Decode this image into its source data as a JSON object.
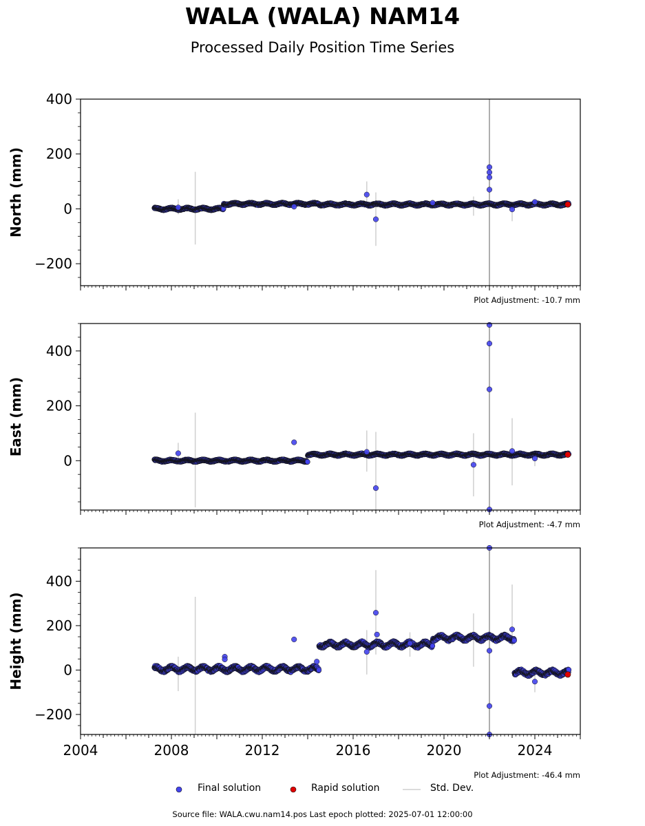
{
  "title": "WALA (WALA) NAM14",
  "subtitle": "Processed Daily Position Time Series",
  "footer": "Source file: WALA.cwu.nam14.pos  Last epoch plotted: 2025-07-01 12:00:00",
  "legend": {
    "final": "Final solution",
    "rapid": "Rapid solution",
    "std": "Std. Dev."
  },
  "colors": {
    "final": "#4444ee",
    "rapid": "#e00000",
    "std": "#cfcfcf",
    "edge": "#111111"
  },
  "chart_data": [
    {
      "type": "scatter",
      "ylabel": "North (mm)",
      "note": "Plot Adjustment: -10.7 mm",
      "xlim": [
        2004,
        2026
      ],
      "ylim": [
        -280,
        400
      ],
      "yticks": [
        -200,
        0,
        200,
        400
      ],
      "xticks": [],
      "segments": [
        [
          2007.25,
          2010.3,
          0
        ],
        [
          2010.3,
          2014.5,
          18
        ],
        [
          2014.5,
          2025.5,
          16
        ]
      ],
      "outliers": [
        [
          2008.3,
          5
        ],
        [
          2013.4,
          8
        ],
        [
          2016.6,
          52
        ],
        [
          2017.0,
          -38
        ],
        [
          2019.5,
          22
        ],
        [
          2022.0,
          152
        ],
        [
          2022.0,
          133
        ],
        [
          2022.0,
          115
        ],
        [
          2022.0,
          70
        ],
        [
          2023.0,
          -2
        ],
        [
          2024.0,
          25
        ]
      ],
      "error_bars": [
        [
          2008.3,
          -20,
          35
        ],
        [
          2009.05,
          -130,
          135
        ],
        [
          2016.6,
          5,
          100
        ],
        [
          2017.0,
          -135,
          60
        ],
        [
          2021.3,
          -25,
          45
        ],
        [
          2022.0,
          -280,
          400
        ],
        [
          2023.0,
          -45,
          20
        ]
      ],
      "rapid": [
        [
          2025.45,
          16
        ]
      ]
    },
    {
      "type": "scatter",
      "ylabel": "East (mm)",
      "note": "Plot Adjustment: -4.7 mm",
      "xlim": [
        2004,
        2026
      ],
      "ylim": [
        -180,
        500
      ],
      "yticks": [
        0,
        200,
        400
      ],
      "xticks": [],
      "segments": [
        [
          2007.25,
          2014.0,
          0
        ],
        [
          2014.0,
          2025.5,
          22
        ]
      ],
      "outliers": [
        [
          2008.3,
          27
        ],
        [
          2013.4,
          67
        ],
        [
          2016.6,
          32
        ],
        [
          2017.0,
          -100
        ],
        [
          2021.3,
          -15
        ],
        [
          2022.0,
          495
        ],
        [
          2022.0,
          427
        ],
        [
          2022.0,
          260
        ],
        [
          2022.0,
          -178
        ],
        [
          2023.0,
          35
        ],
        [
          2024.0,
          8
        ]
      ],
      "error_bars": [
        [
          2008.3,
          -10,
          65
        ],
        [
          2009.05,
          -170,
          175
        ],
        [
          2016.6,
          -40,
          110
        ],
        [
          2017.0,
          -180,
          105
        ],
        [
          2021.3,
          -130,
          100
        ],
        [
          2022.0,
          -180,
          500
        ],
        [
          2023.0,
          -90,
          155
        ],
        [
          2024.0,
          -20,
          25
        ]
      ],
      "rapid": [
        [
          2025.45,
          22
        ]
      ]
    },
    {
      "type": "scatter",
      "ylabel": "Height (mm)",
      "note": "Plot Adjustment: -46.4 mm",
      "xlim": [
        2004,
        2026
      ],
      "ylim": [
        -290,
        550
      ],
      "yticks": [
        -200,
        0,
        200,
        400
      ],
      "xticks": [
        "2004",
        "2008",
        "2012",
        "2016",
        "2020",
        "2024"
      ],
      "segments": [
        [
          2007.25,
          2014.5,
          5
        ],
        [
          2014.5,
          2019.5,
          115
        ],
        [
          2019.5,
          2023.1,
          145
        ],
        [
          2023.1,
          2025.5,
          -12
        ]
      ],
      "outliers": [
        [
          2010.35,
          60
        ],
        [
          2010.35,
          48
        ],
        [
          2013.4,
          138
        ],
        [
          2014.4,
          38
        ],
        [
          2016.6,
          82
        ],
        [
          2017.0,
          258
        ],
        [
          2017.05,
          160
        ],
        [
          2018.5,
          120
        ],
        [
          2022.0,
          550
        ],
        [
          2022.0,
          87
        ],
        [
          2022.0,
          -162
        ],
        [
          2022.0,
          -290
        ],
        [
          2023.0,
          183
        ],
        [
          2024.0,
          -52
        ]
      ],
      "error_bars": [
        [
          2008.3,
          -95,
          60
        ],
        [
          2009.05,
          -290,
          330
        ],
        [
          2016.6,
          -20,
          180
        ],
        [
          2017.0,
          70,
          450
        ],
        [
          2018.5,
          60,
          170
        ],
        [
          2021.3,
          15,
          255
        ],
        [
          2022.0,
          -290,
          550
        ],
        [
          2023.0,
          110,
          385
        ],
        [
          2024.0,
          -100,
          0
        ]
      ],
      "rapid": [
        [
          2025.45,
          -20
        ]
      ]
    }
  ]
}
